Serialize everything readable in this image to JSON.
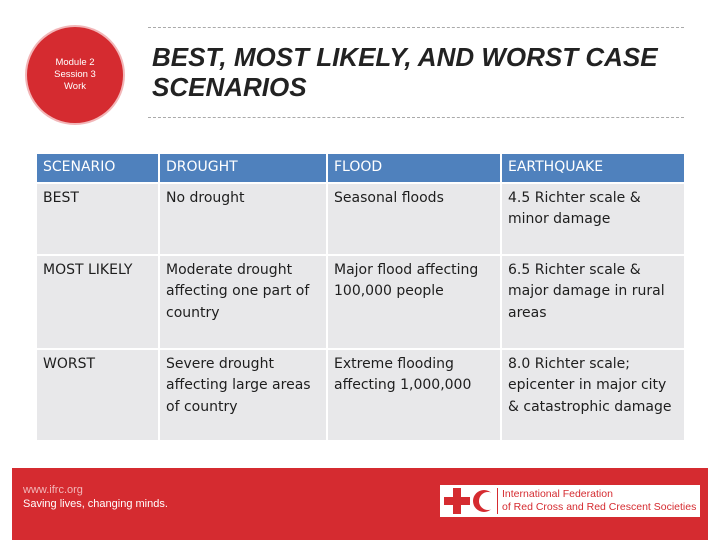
{
  "badge": {
    "lines": [
      "Module 2",
      "Session 3",
      "Work"
    ]
  },
  "title": {
    "line1": "BEST, MOST LIKELY, AND WORST CASE",
    "line2": "SCENARIOS"
  },
  "table": {
    "headers": [
      "SCENARIO",
      "DROUGHT",
      "FLOOD",
      "EARTHQUAKE"
    ],
    "rows": [
      [
        "BEST",
        "No drought",
        "Seasonal floods",
        "4.5 Richter scale & minor damage"
      ],
      [
        "MOST LIKELY",
        "Moderate drought affecting one part of country",
        "Major flood affecting 100,000 people",
        "6.5 Richter scale & major damage in rural areas"
      ],
      [
        "WORST",
        "Severe drought affecting large areas of country",
        "Extreme flooding affecting 1,000,000",
        "8.0 Richter scale; epicenter in major city & catastrophic damage"
      ]
    ]
  },
  "footer": {
    "url": "www.ifrc.org",
    "slogan": "Saving lives, changing minds.",
    "org_line1": "International Federation",
    "org_line2": "of Red Cross and Red Crescent Societies"
  },
  "colors": {
    "brand_red": "#d52b30",
    "header_blue": "#4f81bd",
    "cell_gray": "#e8e8ea"
  },
  "icons": [
    "red-cross-icon",
    "red-crescent-icon"
  ]
}
